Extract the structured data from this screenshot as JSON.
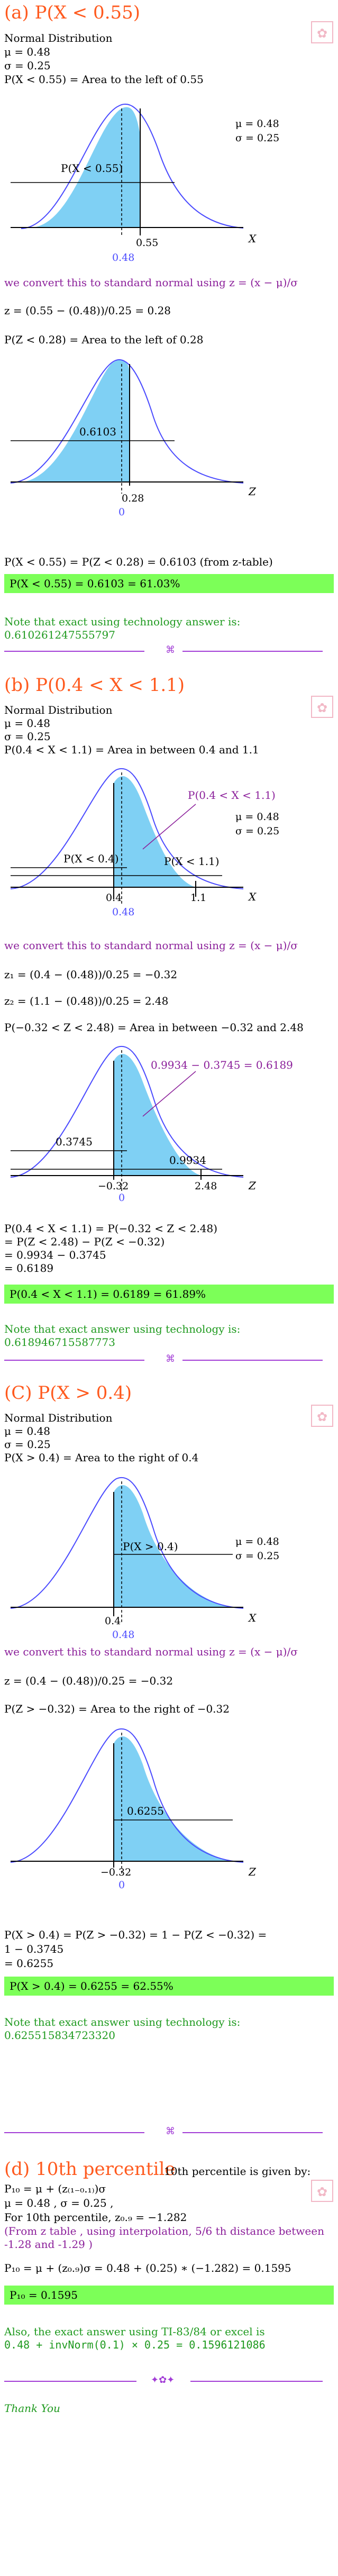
{
  "a": {
    "title": "(a) P(X < 0.55)",
    "lines": [
      "Normal Distribution",
      "μ = 0.48",
      "σ = 0.25",
      "P(X < 0.55) = Area to the left of 0.55"
    ],
    "graph1": {
      "label": "P(X < 0.55)",
      "mu": "μ = 0.48",
      "sigma": "σ = 0.25",
      "x1": "0.55",
      "x2": "0.48",
      "axis": "X"
    },
    "convert": "we convert this to standard normal using z = (x − μ)/σ",
    "z_formula": "z = (0.55 − (0.48))/0.25 = 0.28",
    "pz": "P(Z < 0.28) = Area to the left of 0.28",
    "graph2": {
      "label": "0.6103",
      "x1": "0.28",
      "x2": "0",
      "axis": "Z"
    },
    "result_line": "P(X < 0.55) = P(Z < 0.28) = 0.6103 (from z-table)",
    "banner": "P(X < 0.55) = 0.6103 = 61.03%",
    "tech": "Note that exact using technology answer is: 0.610261247555797"
  },
  "b": {
    "title": "(b) P(0.4 < X < 1.1)",
    "lines": [
      "Normal Distribution",
      "μ = 0.48",
      "σ = 0.25",
      "P(0.4 < X < 1.1) = Area in between 0.4 and 1.1"
    ],
    "graph1": {
      "callout": "P(0.4 < X < 1.1)",
      "left_label": "P(X < 0.4)",
      "right_label": "P(X < 1.1)",
      "mu": "μ = 0.48",
      "sigma": "σ = 0.25",
      "x1": "0.4",
      "x2": "1.1",
      "x3": "0.48",
      "axis": "X"
    },
    "convert": "we convert this to standard normal using z = (x − μ)/σ",
    "z1": "z₁ = (0.4 − (0.48))/0.25 = −0.32",
    "z2": "z₂ = (1.1 − (0.48))/0.25 = 2.48",
    "pz": "P(−0.32 < Z < 2.48) = Area in between −0.32 and 2.48",
    "graph2": {
      "callout": "0.9934 − 0.3745 = 0.6189",
      "left_label": "0.3745",
      "right_label": "0.9934",
      "x1": "−0.32",
      "x2": "2.48",
      "x3": "0",
      "axis": "Z"
    },
    "steps": [
      "P(0.4 < X < 1.1) = P(−0.32 < Z < 2.48)",
      "= P(Z < 2.48) − P(Z < −0.32)",
      "= 0.9934 − 0.3745",
      "= 0.6189"
    ],
    "banner": "P(0.4 < X < 1.1) = 0.6189 = 61.89%",
    "tech": "Note that exact answer using technology is: 0.618946715587773"
  },
  "c": {
    "title": "(C) P(X > 0.4)",
    "lines": [
      "Normal Distribution",
      "μ = 0.48",
      "σ = 0.25",
      "P(X > 0.4) = Area to the right of 0.4"
    ],
    "graph1": {
      "label": "P(X > 0.4)",
      "mu": "μ = 0.48",
      "sigma": "σ = 0.25",
      "x1": "0.4",
      "x2": "0.48",
      "axis": "X"
    },
    "convert": "we convert this to standard normal using z = (x − μ)/σ",
    "z_formula": "z = (0.4 − (0.48))/0.25 = −0.32",
    "pz": "P(Z > −0.32) = Area to the right of −0.32",
    "graph2": {
      "label": "0.6255",
      "x1": "−0.32",
      "x2": "0",
      "axis": "Z"
    },
    "steps": [
      "P(X > 0.4) = P(Z > −0.32) = 1 − P(Z < −0.32) =",
      "1 − 0.3745",
      "= 0.6255"
    ],
    "banner": "P(X > 0.4) = 0.6255 = 62.55%",
    "tech": "Note that exact answer using technology is: 0.625515834723320"
  },
  "d": {
    "title": "(d) 10th percentile",
    "intro": "10th percentile is given by:",
    "lines": [
      "P₁₀ = μ + (z₍₁₋₀.₁₎)σ",
      "μ = 0.48 , σ = 0.25 ,"
    ],
    "for_line": "For 10th percentile, z₀.₉ = −1.282",
    "note": "(From z table , using interpolation, 5/6 th distance between -1.28 and -1.29 )",
    "calc": "P₁₀ = μ + (z₀.₉)σ = 0.48 + (0.25) ∗ (−1.282) = 0.1595",
    "banner": "P₁₀ = 0.1595",
    "tech1": "Also, the exact answer using TI-83/84 or excel is",
    "tech2": "0.48 + invNorm(0.1) × 0.25 = 0.1596121086"
  },
  "thanks": "Thank You"
}
